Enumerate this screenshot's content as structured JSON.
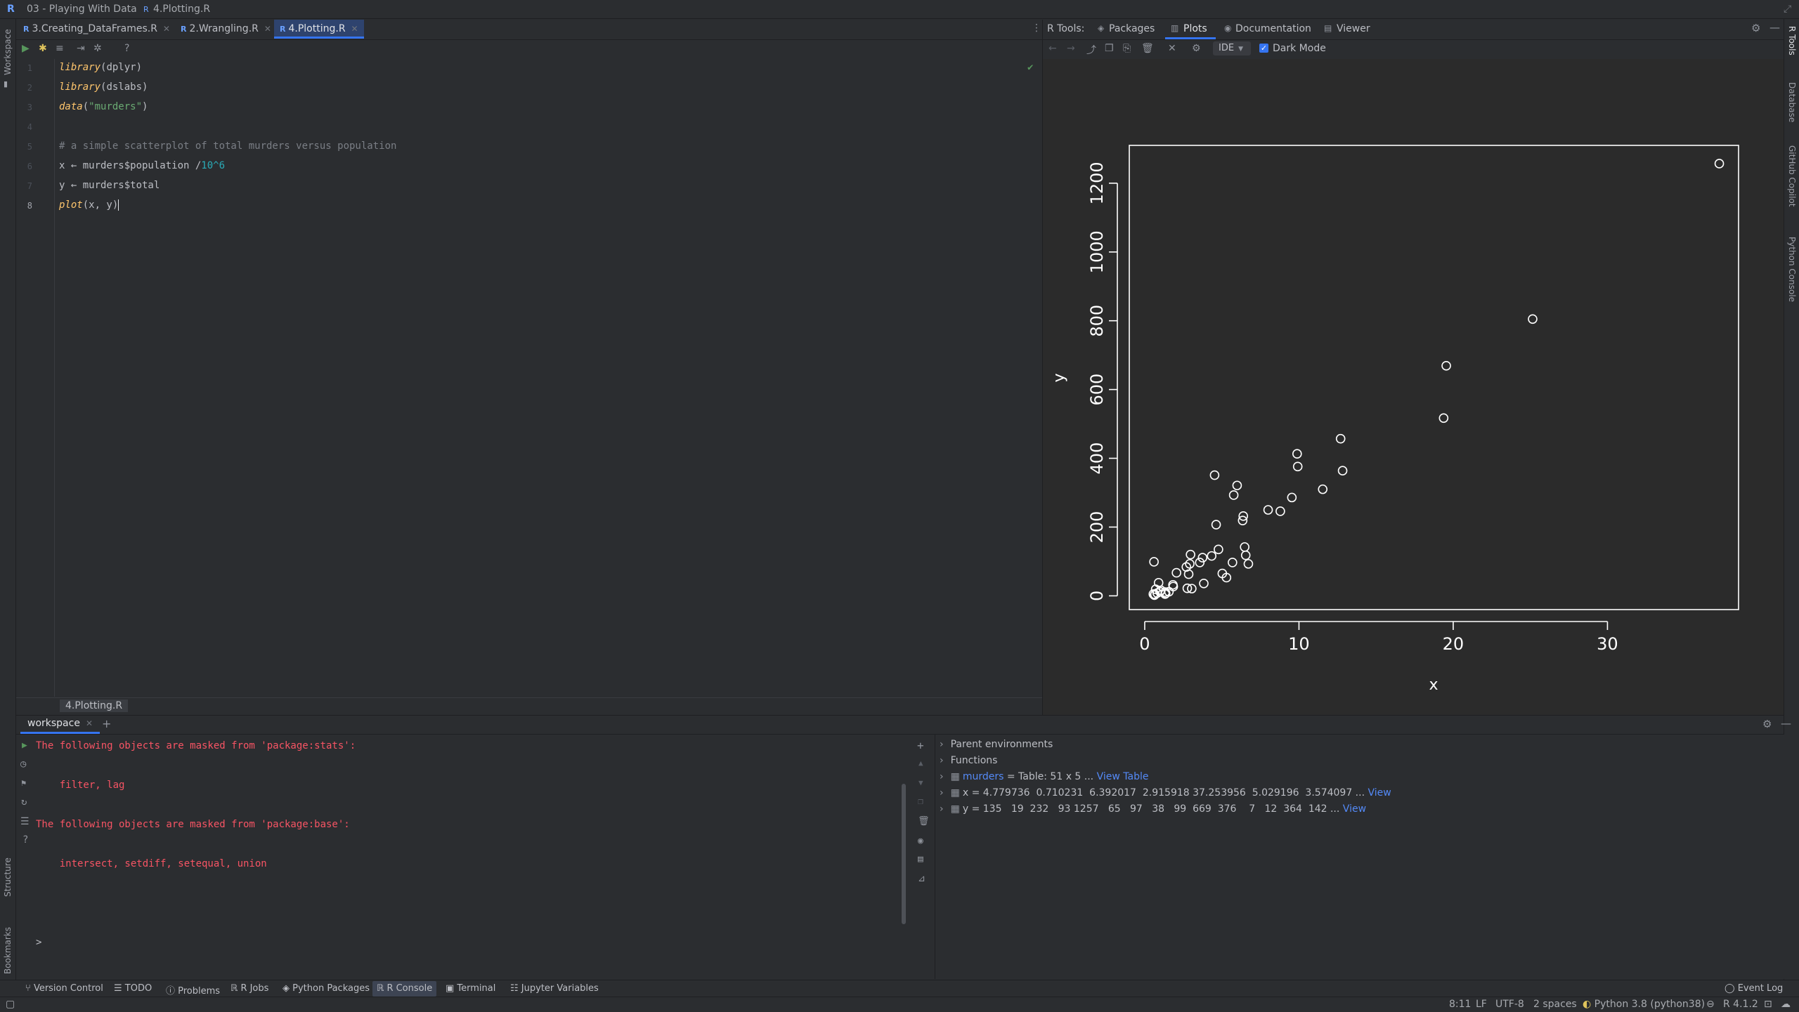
{
  "titlebar": {
    "app_icon": "R",
    "project": "03 - Playing With Data",
    "file": "4.Plotting.R"
  },
  "left_strip": {
    "workspace": "Workspace",
    "structure": "Structure",
    "bookmarks": "Bookmarks"
  },
  "right_strip": {
    "rtools": "R Tools",
    "database": "Database",
    "copilot": "GitHub Copilot",
    "python_console": "Python Console"
  },
  "editor": {
    "tabs": [
      {
        "label": "3.Creating_DataFrames.R"
      },
      {
        "label": "2.Wrangling.R"
      },
      {
        "label": "4.Plotting.R",
        "active": true
      }
    ],
    "lines": [
      {
        "n": "1",
        "fn": "library",
        "rest": "(dplyr)"
      },
      {
        "n": "2",
        "fn": "library",
        "rest": "(dslabs)"
      },
      {
        "n": "3",
        "fn": "data",
        "str": "\"murders\""
      },
      {
        "n": "4"
      },
      {
        "n": "5",
        "comment": "# a simple scatterplot of total murders versus population"
      },
      {
        "n": "6",
        "code_a": "x ← murders$population /",
        "code_num": "10^6"
      },
      {
        "n": "7",
        "code": "y ← murders$total"
      },
      {
        "n": "8",
        "fn": "plot",
        "rest": "(x, y)"
      }
    ],
    "breadcrumb": "4.Plotting.R"
  },
  "rtools": {
    "label": "R Tools:",
    "tabs": [
      "Packages",
      "Plots",
      "Documentation",
      "Viewer"
    ],
    "active_tab": "Plots",
    "ide_select": "IDE",
    "dark_mode_label": "Dark Mode",
    "dark_mode_checked": true
  },
  "chart_data": {
    "type": "scatter",
    "title": "",
    "xlabel": "x",
    "ylabel": "y",
    "xlim": [
      -1,
      38.5
    ],
    "ylim": [
      -40,
      1310
    ],
    "xticks": [
      0,
      10,
      20,
      30
    ],
    "yticks": [
      0,
      200,
      400,
      600,
      800,
      1000,
      1200
    ],
    "x": [
      4.78,
      0.71,
      6.39,
      2.92,
      37.25,
      5.03,
      3.57,
      0.9,
      0.6,
      19.55,
      9.92,
      1.36,
      1.57,
      12.83,
      6.48,
      3.05,
      2.85,
      4.34,
      4.53,
      1.33,
      5.77,
      6.55,
      9.88,
      5.3,
      2.97,
      5.99,
      0.99,
      1.83,
      2.7,
      1.32,
      8.79,
      2.06,
      19.38,
      9.54,
      0.67,
      11.54,
      3.75,
      3.83,
      12.7,
      1.05,
      4.63,
      0.81,
      6.35,
      25.15,
      2.76,
      0.63,
      8.0,
      6.72,
      1.85,
      5.69,
      0.56
    ],
    "y": [
      135,
      19,
      232,
      93,
      1257,
      65,
      97,
      38,
      99,
      669,
      376,
      7,
      12,
      364,
      142,
      21,
      63,
      116,
      351,
      11,
      293,
      118,
      413,
      53,
      120,
      321,
      12,
      32,
      84,
      5,
      246,
      67,
      517,
      286,
      4,
      310,
      111,
      36,
      457,
      16,
      207,
      8,
      219,
      805,
      22,
      2,
      250,
      93,
      27,
      97,
      5
    ]
  },
  "workspace": {
    "tab": "workspace",
    "console_lines": [
      "The following objects are masked from 'package:stats':",
      "",
      "    filter, lag",
      "",
      "The following objects are masked from 'package:base':",
      "",
      "    intersect, setdiff, setequal, union"
    ],
    "prompt": ">",
    "vars": {
      "parent_env": "Parent environments",
      "functions": "Functions",
      "murders_name": "murders",
      "murders_desc": " = Table: 51 x 5 ...",
      "murders_link": "View Table",
      "x_desc": "x = 4.779736  0.710231  6.392017  2.915918 37.253956  5.029196  3.574097 ...",
      "x_link": "View",
      "y_desc": "y = 135   19  232   93 1257   65   97   38   99  669  376    7   12  364  142 ...",
      "y_link": "View"
    }
  },
  "bottom_tools": [
    "Version Control",
    "TODO",
    "Problems",
    "R Jobs",
    "Python Packages",
    "R Console",
    "Terminal",
    "Jupyter Variables"
  ],
  "bottom_active": "R Console",
  "event_log": "Event Log",
  "status": {
    "position": "8:11",
    "line_sep": "LF",
    "encoding": "UTF-8",
    "indent": "2 spaces",
    "python": "Python 3.8 (python38)",
    "r_version": "R 4.1.2"
  },
  "colors": {
    "accent": "#3574f0",
    "error": "#f75464",
    "link": "#548af7",
    "plot_bg": "#2b2b2b",
    "plot_fg": "#ffffff"
  }
}
